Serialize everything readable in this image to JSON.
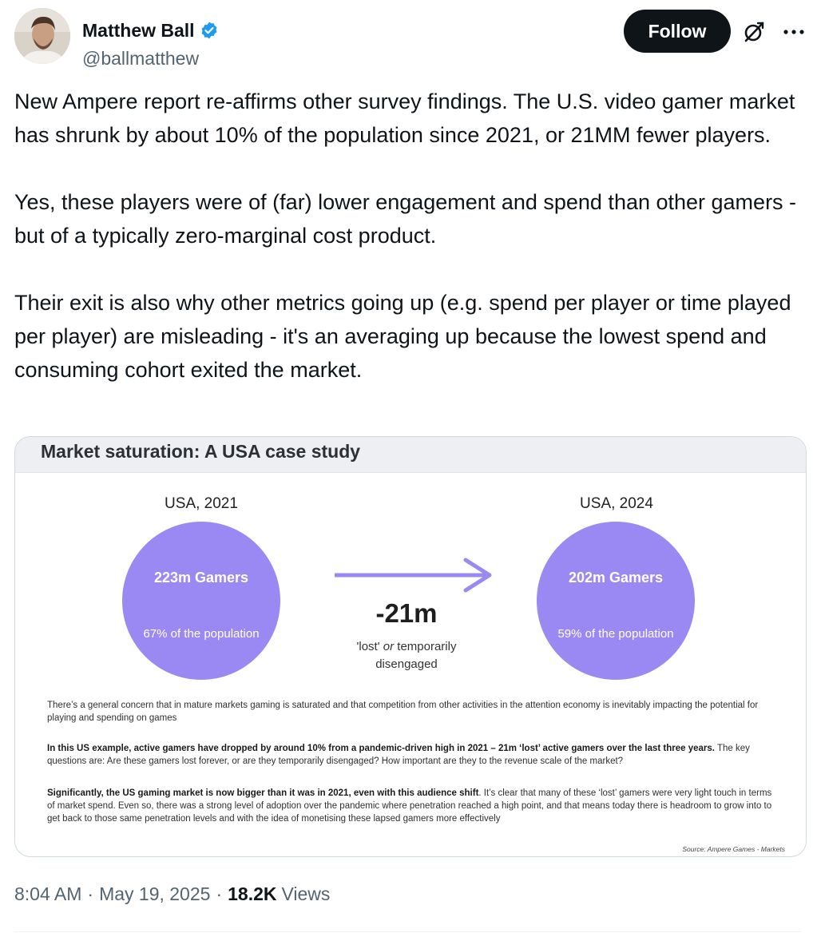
{
  "author": {
    "display_name": "Matthew Ball",
    "handle": "@ballmatthew",
    "verified": true
  },
  "actions": {
    "follow_label": "Follow",
    "grok_icon": "grok-icon",
    "more_icon": "more-icon"
  },
  "tweet": {
    "paragraphs": [
      "New Ampere report re-affirms other survey findings. The U.S. video gamer market has shrunk by about 10% of the population since 2021, or 21MM fewer players.",
      "Yes, these players were of (far) lower engagement and spend than other gamers - but of a typically zero-marginal cost product.",
      "Their exit is also why other metrics going up (e.g. spend per player or time played per player) are misleading - it's an averaging up because the lowest spend and consuming cohort exited the market."
    ]
  },
  "card": {
    "title": "Market saturation: A USA case study",
    "left": {
      "year": "USA, 2021",
      "gamers": "223m Gamers",
      "share": "67% of the population"
    },
    "right": {
      "year": "USA, 2024",
      "gamers": "202m Gamers",
      "share": "59% of the population"
    },
    "delta": {
      "value": "-21m",
      "caption_a": "'lost'",
      "caption_b": "or",
      "caption_c": "temporarily",
      "caption_d": "disengaged"
    },
    "para1": "There’s a general concern that in mature markets gaming is saturated and that competition from other activities in the attention economy is inevitably impacting the potential for playing and spending on games",
    "para2_bold": "In this US example, active gamers have dropped by around 10% from a pandemic-driven high in 2021 – 21m ‘lost’ active gamers over the last three years.",
    "para2_rest": "The key questions are: Are these gamers lost forever, or are they temporarily disengaged? How important are they to the revenue scale of the market?",
    "para3_bold": "Significantly, the US gaming market is now bigger than it was in 2021, even with this audience shift",
    "para3_rest": ". It’s clear that many of these ‘lost’ gamers were very light touch in terms of market spend. Even so, there was a strong level of adoption over the pandemic where penetration reached a high point, and that means today there is headroom to grow into to get back to those same penetration levels and with the idea of monetising these lapsed gamers more effectively",
    "source": "Source: Ampere Games - Markets",
    "accent_color": "#9b89f3"
  },
  "meta": {
    "time": "8:04 AM",
    "date": "May 19, 2025",
    "views_count": "18.2K",
    "views_label": "Views",
    "separator": "·"
  }
}
